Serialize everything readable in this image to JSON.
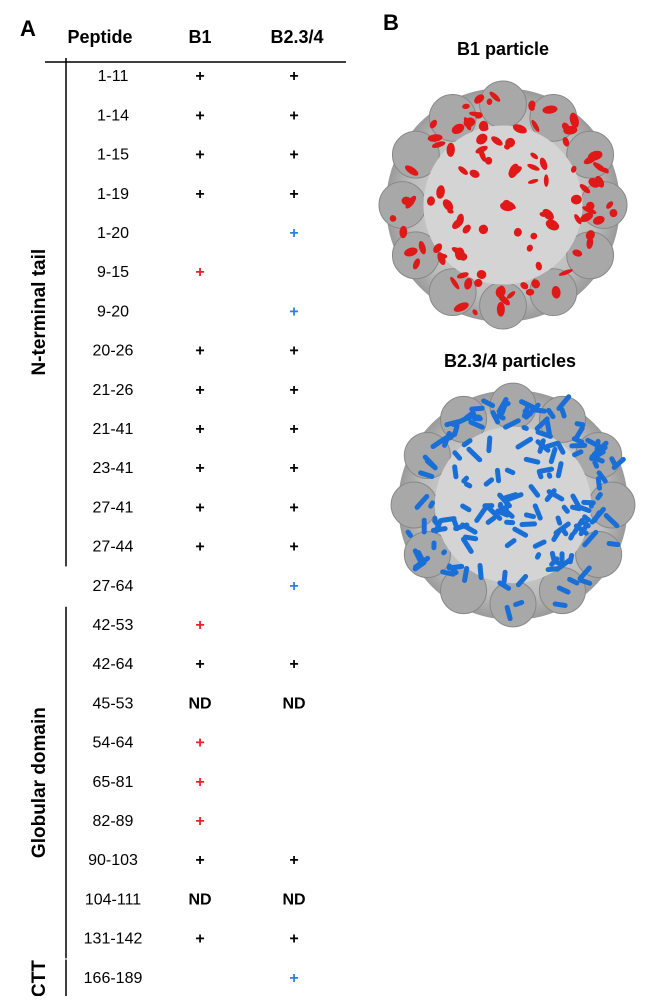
{
  "panels": {
    "a": "A",
    "b": "B"
  },
  "table": {
    "headers": [
      "Peptide",
      "B1",
      "B2.3/4"
    ],
    "rows": [
      {
        "peptide": "1-11",
        "b1": {
          "text": "+",
          "color": "#000000"
        },
        "b2": {
          "text": "+",
          "color": "#000000"
        }
      },
      {
        "peptide": "1-14",
        "b1": {
          "text": "+",
          "color": "#000000"
        },
        "b2": {
          "text": "+",
          "color": "#000000"
        }
      },
      {
        "peptide": "1-15",
        "b1": {
          "text": "+",
          "color": "#000000"
        },
        "b2": {
          "text": "+",
          "color": "#000000"
        }
      },
      {
        "peptide": "1-19",
        "b1": {
          "text": "+",
          "color": "#000000"
        },
        "b2": {
          "text": "+",
          "color": "#000000"
        }
      },
      {
        "peptide": "1-20",
        "b1": null,
        "b2": {
          "text": "+",
          "color": "#2f7fe0"
        }
      },
      {
        "peptide": "9-15",
        "b1": {
          "text": "+",
          "color": "#e8202a"
        },
        "b2": null
      },
      {
        "peptide": "9-20",
        "b1": null,
        "b2": {
          "text": "+",
          "color": "#2f7fe0"
        }
      },
      {
        "peptide": "20-26",
        "b1": {
          "text": "+",
          "color": "#000000"
        },
        "b2": {
          "text": "+",
          "color": "#000000"
        }
      },
      {
        "peptide": "21-26",
        "b1": {
          "text": "+",
          "color": "#000000"
        },
        "b2": {
          "text": "+",
          "color": "#000000"
        }
      },
      {
        "peptide": "21-41",
        "b1": {
          "text": "+",
          "color": "#000000"
        },
        "b2": {
          "text": "+",
          "color": "#000000"
        }
      },
      {
        "peptide": "23-41",
        "b1": {
          "text": "+",
          "color": "#000000"
        },
        "b2": {
          "text": "+",
          "color": "#000000"
        }
      },
      {
        "peptide": "27-41",
        "b1": {
          "text": "+",
          "color": "#000000"
        },
        "b2": {
          "text": "+",
          "color": "#000000"
        }
      },
      {
        "peptide": "27-44",
        "b1": {
          "text": "+",
          "color": "#000000"
        },
        "b2": {
          "text": "+",
          "color": "#000000"
        }
      },
      {
        "peptide": "27-64",
        "b1": null,
        "b2": {
          "text": "+",
          "color": "#2f7fe0"
        }
      },
      {
        "peptide": "42-53",
        "b1": {
          "text": "+",
          "color": "#e8202a"
        },
        "b2": null
      },
      {
        "peptide": "42-64",
        "b1": {
          "text": "+",
          "color": "#000000"
        },
        "b2": {
          "text": "+",
          "color": "#000000"
        }
      },
      {
        "peptide": "45-53",
        "b1": {
          "text": "ND",
          "color": "#000000"
        },
        "b2": {
          "text": "ND",
          "color": "#000000"
        }
      },
      {
        "peptide": "54-64",
        "b1": {
          "text": "+",
          "color": "#e8202a"
        },
        "b2": null
      },
      {
        "peptide": "65-81",
        "b1": {
          "text": "+",
          "color": "#e8202a"
        },
        "b2": null
      },
      {
        "peptide": "82-89",
        "b1": {
          "text": "+",
          "color": "#e8202a"
        },
        "b2": null
      },
      {
        "peptide": "90-103",
        "b1": {
          "text": "+",
          "color": "#000000"
        },
        "b2": {
          "text": "+",
          "color": "#000000"
        }
      },
      {
        "peptide": "104-111",
        "b1": {
          "text": "ND",
          "color": "#000000"
        },
        "b2": {
          "text": "ND",
          "color": "#000000"
        }
      },
      {
        "peptide": "131-142",
        "b1": {
          "text": "+",
          "color": "#000000"
        },
        "b2": {
          "text": "+",
          "color": "#000000"
        }
      },
      {
        "peptide": "166-189",
        "b1": null,
        "b2": {
          "text": "+",
          "color": "#2f7fe0"
        }
      }
    ],
    "regions": [
      "N-terminal tail",
      "Globular domain",
      "CTT"
    ]
  },
  "particles": [
    {
      "title": "B1 particle",
      "color": "#e01818"
    },
    {
      "title": "B2.3/4 particles",
      "color": "#1a6fd6"
    }
  ]
}
